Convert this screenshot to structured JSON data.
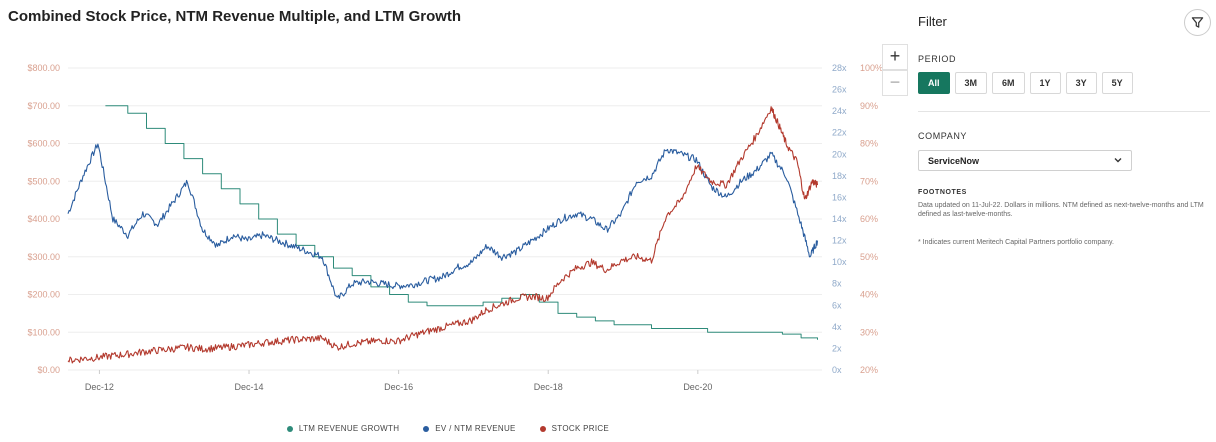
{
  "chart_title": "Combined Stock Price, NTM Revenue Multiple, and LTM Growth",
  "zoom": {
    "in": "+",
    "out": "−"
  },
  "legend": [
    {
      "label": "LTM REVENUE GROWTH",
      "color": "#2e8b7a"
    },
    {
      "label": "EV / NTM REVENUE",
      "color": "#2a5d9f"
    },
    {
      "label": "STOCK PRICE",
      "color": "#b33a2e"
    }
  ],
  "filter": {
    "title": "Filter",
    "period_label": "PERIOD",
    "periods": [
      "All",
      "3M",
      "6M",
      "1Y",
      "3Y",
      "5Y"
    ],
    "active_period": "All",
    "company_label": "COMPANY",
    "company_value": "ServiceNow",
    "footnotes_label": "FOOTNOTES",
    "footnote_1": "Data updated on 11-Jul-22. Dollars in millions. NTM defined as next-twelve-months and LTM defined as last-twelve-months.",
    "footnote_2": "* Indicates current Meritech Capital Partners portfolio company."
  },
  "chart_data": {
    "type": "line",
    "title": "Combined Stock Price, NTM Revenue Multiple, and LTM Growth",
    "x_range": [
      "2012-07",
      "2022-07"
    ],
    "x_ticks": [
      {
        "label": "Dec-12",
        "t": 2012.92
      },
      {
        "label": "Dec-14",
        "t": 2014.92
      },
      {
        "label": "Dec-16",
        "t": 2016.92
      },
      {
        "label": "Dec-18",
        "t": 2018.92
      },
      {
        "label": "Dec-20",
        "t": 2020.92
      }
    ],
    "axes": {
      "price": {
        "min": 0,
        "max": 800,
        "ticks": [
          "$0.00",
          "$100.00",
          "$200.00",
          "$300.00",
          "$400.00",
          "$500.00",
          "$600.00",
          "$700.00",
          "$800.00"
        ],
        "color": "#d9a08f"
      },
      "multiple": {
        "min": 0,
        "max": 28,
        "ticks": [
          "0x",
          "2x",
          "4x",
          "6x",
          "8x",
          "10x",
          "12x",
          "14x",
          "16x",
          "18x",
          "20x",
          "22x",
          "24x",
          "26x",
          "28x"
        ],
        "color": "#8fa9c9"
      },
      "growth": {
        "min": 20,
        "max": 100,
        "ticks": [
          "20%",
          "30%",
          "40%",
          "50%",
          "60%",
          "70%",
          "80%",
          "90%",
          "100%"
        ],
        "color": "#d9a08f"
      }
    },
    "series": [
      {
        "name": "LTM REVENUE GROWTH",
        "axis": "growth",
        "color": "#2e8b7a",
        "step": true,
        "points": [
          [
            2013.0,
            90
          ],
          [
            2013.3,
            88
          ],
          [
            2013.55,
            84
          ],
          [
            2013.8,
            80
          ],
          [
            2014.05,
            76
          ],
          [
            2014.3,
            72
          ],
          [
            2014.55,
            68
          ],
          [
            2014.8,
            64
          ],
          [
            2015.05,
            60
          ],
          [
            2015.3,
            56
          ],
          [
            2015.55,
            53
          ],
          [
            2015.8,
            50
          ],
          [
            2016.05,
            47
          ],
          [
            2016.3,
            45
          ],
          [
            2016.55,
            42
          ],
          [
            2016.8,
            40
          ],
          [
            2017.05,
            38
          ],
          [
            2017.3,
            37
          ],
          [
            2017.55,
            37
          ],
          [
            2017.8,
            37
          ],
          [
            2018.05,
            38
          ],
          [
            2018.3,
            39
          ],
          [
            2018.55,
            40
          ],
          [
            2018.8,
            38
          ],
          [
            2019.05,
            35
          ],
          [
            2019.3,
            34
          ],
          [
            2019.55,
            33
          ],
          [
            2019.8,
            32
          ],
          [
            2020.05,
            32
          ],
          [
            2020.3,
            31
          ],
          [
            2020.55,
            31
          ],
          [
            2020.8,
            31
          ],
          [
            2021.05,
            30
          ],
          [
            2021.3,
            30
          ],
          [
            2021.55,
            30
          ],
          [
            2021.8,
            30
          ],
          [
            2022.05,
            29.5
          ],
          [
            2022.3,
            28.5
          ],
          [
            2022.52,
            28
          ]
        ]
      },
      {
        "name": "EV / NTM REVENUE",
        "axis": "multiple",
        "color": "#2a5d9f",
        "points": [
          [
            2012.5,
            14.5
          ],
          [
            2012.7,
            18.0
          ],
          [
            2012.9,
            21.0
          ],
          [
            2013.1,
            14.0
          ],
          [
            2013.3,
            12.5
          ],
          [
            2013.5,
            14.5
          ],
          [
            2013.7,
            13.5
          ],
          [
            2013.9,
            15.5
          ],
          [
            2014.1,
            17.5
          ],
          [
            2014.3,
            13.0
          ],
          [
            2014.5,
            11.5
          ],
          [
            2014.7,
            12.5
          ],
          [
            2014.9,
            12.0
          ],
          [
            2015.1,
            12.5
          ],
          [
            2015.3,
            12.0
          ],
          [
            2015.5,
            11.5
          ],
          [
            2015.7,
            11.0
          ],
          [
            2015.9,
            10.5
          ],
          [
            2016.1,
            6.5
          ],
          [
            2016.3,
            8.0
          ],
          [
            2016.5,
            8.2
          ],
          [
            2016.7,
            8.0
          ],
          [
            2016.9,
            7.8
          ],
          [
            2017.1,
            7.9
          ],
          [
            2017.3,
            8.3
          ],
          [
            2017.5,
            8.6
          ],
          [
            2017.7,
            9.5
          ],
          [
            2017.9,
            10.0
          ],
          [
            2018.1,
            11.5
          ],
          [
            2018.3,
            10.5
          ],
          [
            2018.5,
            11.0
          ],
          [
            2018.7,
            12.0
          ],
          [
            2018.9,
            13.0
          ],
          [
            2019.1,
            14.0
          ],
          [
            2019.3,
            14.5
          ],
          [
            2019.5,
            14.0
          ],
          [
            2019.7,
            13.0
          ],
          [
            2019.9,
            14.5
          ],
          [
            2020.1,
            17.5
          ],
          [
            2020.3,
            18.0
          ],
          [
            2020.5,
            20.5
          ],
          [
            2020.7,
            20.0
          ],
          [
            2020.9,
            19.5
          ],
          [
            2021.1,
            17.0
          ],
          [
            2021.3,
            16.0
          ],
          [
            2021.5,
            17.5
          ],
          [
            2021.7,
            18.5
          ],
          [
            2021.9,
            20.0
          ],
          [
            2022.1,
            18.0
          ],
          [
            2022.3,
            13.5
          ],
          [
            2022.42,
            10.5
          ],
          [
            2022.52,
            12.0
          ]
        ]
      },
      {
        "name": "STOCK PRICE",
        "axis": "price",
        "color": "#b33a2e",
        "points": [
          [
            2012.5,
            25
          ],
          [
            2012.7,
            30
          ],
          [
            2012.9,
            33
          ],
          [
            2013.1,
            38
          ],
          [
            2013.3,
            42
          ],
          [
            2013.5,
            48
          ],
          [
            2013.7,
            52
          ],
          [
            2013.9,
            56
          ],
          [
            2014.1,
            60
          ],
          [
            2014.3,
            56
          ],
          [
            2014.5,
            58
          ],
          [
            2014.7,
            62
          ],
          [
            2014.9,
            66
          ],
          [
            2015.1,
            72
          ],
          [
            2015.3,
            76
          ],
          [
            2015.5,
            80
          ],
          [
            2015.7,
            82
          ],
          [
            2015.9,
            84
          ],
          [
            2016.1,
            60
          ],
          [
            2016.3,
            70
          ],
          [
            2016.5,
            74
          ],
          [
            2016.7,
            78
          ],
          [
            2016.9,
            76
          ],
          [
            2017.1,
            90
          ],
          [
            2017.3,
            102
          ],
          [
            2017.5,
            112
          ],
          [
            2017.7,
            122
          ],
          [
            2017.9,
            132
          ],
          [
            2018.1,
            160
          ],
          [
            2018.3,
            175
          ],
          [
            2018.5,
            190
          ],
          [
            2018.7,
            195
          ],
          [
            2018.9,
            190
          ],
          [
            2019.1,
            240
          ],
          [
            2019.3,
            270
          ],
          [
            2019.5,
            285
          ],
          [
            2019.7,
            265
          ],
          [
            2019.9,
            290
          ],
          [
            2020.1,
            300
          ],
          [
            2020.3,
            290
          ],
          [
            2020.5,
            410
          ],
          [
            2020.7,
            450
          ],
          [
            2020.9,
            540
          ],
          [
            2021.1,
            500
          ],
          [
            2021.3,
            490
          ],
          [
            2021.5,
            560
          ],
          [
            2021.7,
            620
          ],
          [
            2021.9,
            695
          ],
          [
            2022.0,
            650
          ],
          [
            2022.1,
            600
          ],
          [
            2022.25,
            550
          ],
          [
            2022.35,
            450
          ],
          [
            2022.45,
            500
          ],
          [
            2022.52,
            490
          ]
        ]
      }
    ]
  }
}
